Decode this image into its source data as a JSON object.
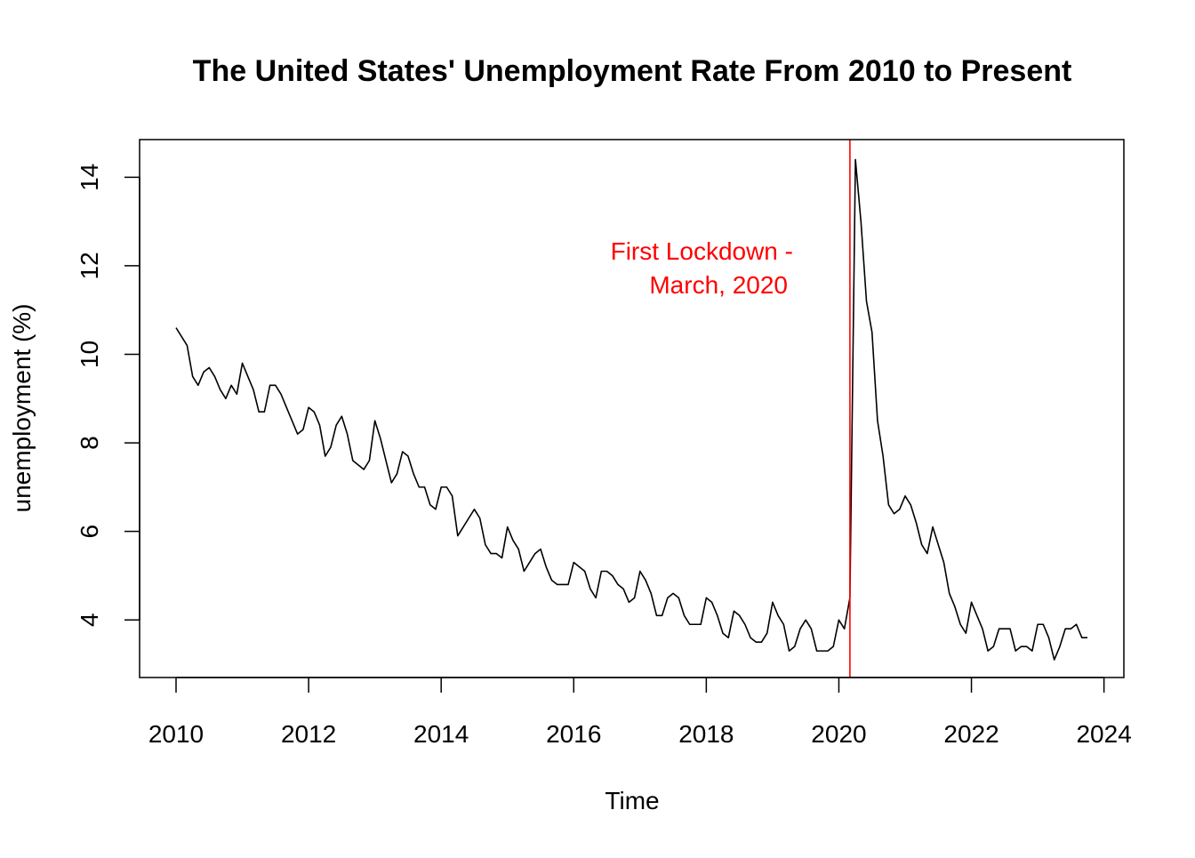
{
  "chart_data": {
    "type": "line",
    "title": "The United States' Unemployment Rate From 2010 to Present",
    "xlabel": "Time",
    "ylabel": "unemployment (%)",
    "xlim": [
      2009.45,
      2024.3
    ],
    "ylim": [
      2.7,
      14.85
    ],
    "x_ticks": [
      2010,
      2012,
      2014,
      2016,
      2018,
      2020,
      2022,
      2024
    ],
    "y_ticks": [
      4,
      6,
      8,
      10,
      12,
      14
    ],
    "x_tick_labels": [
      "2010",
      "2012",
      "2014",
      "2016",
      "2018",
      "2020",
      "2022",
      "2024"
    ],
    "y_tick_labels": [
      "4",
      "6",
      "8",
      "10",
      "12",
      "14"
    ],
    "grid": false,
    "legend": "none",
    "series": [
      {
        "color": "#000000",
        "start": 2010.0,
        "step": 0.0833333,
        "values": [
          10.6,
          10.4,
          10.2,
          9.5,
          9.3,
          9.6,
          9.7,
          9.5,
          9.2,
          9.0,
          9.3,
          9.1,
          9.8,
          9.5,
          9.2,
          8.7,
          8.7,
          9.3,
          9.3,
          9.1,
          8.8,
          8.5,
          8.2,
          8.3,
          8.8,
          8.7,
          8.4,
          7.7,
          7.9,
          8.4,
          8.6,
          8.2,
          7.6,
          7.5,
          7.4,
          7.6,
          8.5,
          8.1,
          7.6,
          7.1,
          7.3,
          7.8,
          7.7,
          7.3,
          7.0,
          7.0,
          6.6,
          6.5,
          7.0,
          7.0,
          6.8,
          5.9,
          6.1,
          6.3,
          6.5,
          6.3,
          5.7,
          5.5,
          5.5,
          5.4,
          6.1,
          5.8,
          5.6,
          5.1,
          5.3,
          5.5,
          5.6,
          5.2,
          4.9,
          4.8,
          4.8,
          4.8,
          5.3,
          5.2,
          5.1,
          4.7,
          4.5,
          5.1,
          5.1,
          5.0,
          4.8,
          4.7,
          4.4,
          4.5,
          5.1,
          4.9,
          4.6,
          4.1,
          4.1,
          4.5,
          4.6,
          4.5,
          4.1,
          3.9,
          3.9,
          3.9,
          4.5,
          4.4,
          4.1,
          3.7,
          3.6,
          4.2,
          4.1,
          3.9,
          3.6,
          3.5,
          3.5,
          3.7,
          4.4,
          4.1,
          3.9,
          3.3,
          3.4,
          3.8,
          4.0,
          3.8,
          3.3,
          3.3,
          3.3,
          3.4,
          4.0,
          3.8,
          4.5,
          14.4,
          13.0,
          11.2,
          10.5,
          8.5,
          7.7,
          6.6,
          6.4,
          6.5,
          6.8,
          6.6,
          6.2,
          5.7,
          5.5,
          6.1,
          5.7,
          5.3,
          4.6,
          4.3,
          3.9,
          3.7,
          4.4,
          4.1,
          3.8,
          3.3,
          3.4,
          3.8,
          3.8,
          3.8,
          3.3,
          3.4,
          3.4,
          3.3,
          3.9,
          3.9,
          3.6,
          3.1,
          3.4,
          3.8,
          3.8,
          3.9,
          3.6,
          3.6
        ]
      }
    ],
    "reference_line": {
      "x": 2020.167,
      "color": "#ff0000",
      "label_line1": "First Lockdown -",
      "label_line2": "March, 2020"
    }
  }
}
